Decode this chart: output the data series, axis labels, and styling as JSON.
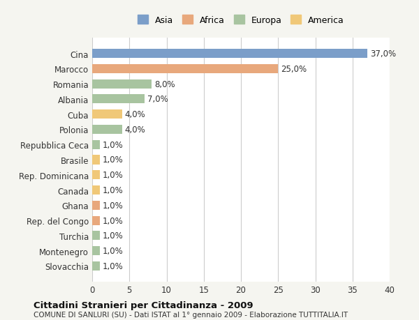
{
  "categories": [
    "Slovacchia",
    "Montenegro",
    "Turchia",
    "Rep. del Congo",
    "Ghana",
    "Canada",
    "Rep. Dominicana",
    "Brasile",
    "Repubblica Ceca",
    "Polonia",
    "Cuba",
    "Albania",
    "Romania",
    "Marocco",
    "Cina"
  ],
  "values": [
    1.0,
    1.0,
    1.0,
    1.0,
    1.0,
    1.0,
    1.0,
    1.0,
    1.0,
    4.0,
    4.0,
    7.0,
    8.0,
    25.0,
    37.0
  ],
  "colors": [
    "#a8c4a0",
    "#a8c4a0",
    "#a8c4a0",
    "#e8a87c",
    "#e8a87c",
    "#f0c878",
    "#f0c878",
    "#f0c878",
    "#a8c4a0",
    "#a8c4a0",
    "#f0c878",
    "#a8c4a0",
    "#a8c4a0",
    "#e8a87c",
    "#7b9ec9"
  ],
  "labels": [
    "1,0%",
    "1,0%",
    "1,0%",
    "1,0%",
    "1,0%",
    "1,0%",
    "1,0%",
    "1,0%",
    "1,0%",
    "4,0%",
    "4,0%",
    "7,0%",
    "8,0%",
    "25,0%",
    "37,0%"
  ],
  "legend_labels": [
    "Asia",
    "Africa",
    "Europa",
    "America"
  ],
  "legend_colors": [
    "#7b9ec9",
    "#e8a87c",
    "#a8c4a0",
    "#f0c878"
  ],
  "title": "Cittadini Stranieri per Cittadinanza - 2009",
  "subtitle": "COMUNE DI SANLURI (SU) - Dati ISTAT al 1° gennaio 2009 - Elaborazione TUTTITALIA.IT",
  "xlim": [
    0,
    40
  ],
  "xticks": [
    0,
    5,
    10,
    15,
    20,
    25,
    30,
    35,
    40
  ],
  "background_color": "#f5f5f0",
  "bar_background": "#ffffff",
  "grid_color": "#cccccc"
}
